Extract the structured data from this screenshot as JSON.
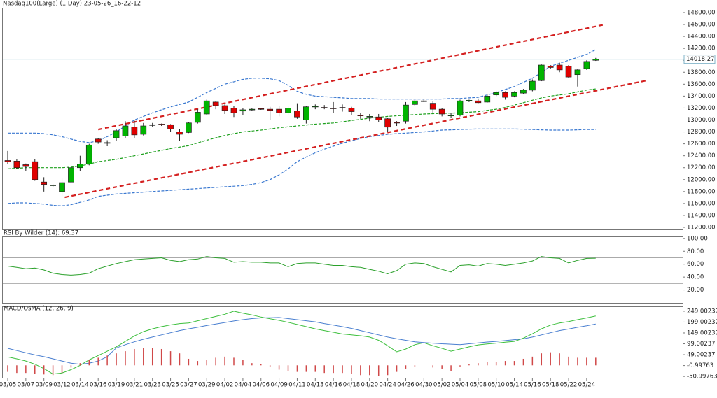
{
  "chart_data": [
    {
      "type": "candlestick",
      "title": "Nasdaq100(Large) (1 Day) 23-05-26_16-22-12",
      "categories": [
        "03/05",
        null,
        "03/07",
        null,
        "03/09",
        null,
        "03/12",
        null,
        "03/14",
        null,
        "03/16",
        null,
        "03/19",
        null,
        "03/21",
        null,
        "03/23",
        null,
        "03/25",
        null,
        "03/27",
        null,
        "03/29",
        null,
        "04/02",
        null,
        "04/04",
        null,
        "04/06",
        null,
        "04/09",
        null,
        "04/11",
        null,
        "04/13",
        null,
        "04/16",
        null,
        "04/18",
        null,
        "04/20",
        null,
        "04/24",
        null,
        "04/26",
        null,
        "04/30",
        null,
        "05/02",
        null,
        "05/04",
        null,
        "05/08",
        null,
        "05/10",
        null,
        "05/14",
        null,
        "05/16",
        null,
        "05/18",
        null,
        "05/22",
        null,
        "05/24",
        null
      ],
      "open": [
        12320,
        12310,
        12250,
        12300,
        11960,
        11900,
        11800,
        11960,
        12200,
        12260,
        12680,
        12620,
        12700,
        12730,
        12880,
        12760,
        12920,
        12930,
        12920,
        12800,
        12790,
        12960,
        13100,
        13300,
        13240,
        13200,
        13150,
        13180,
        13190,
        13180,
        13180,
        13120,
        13150,
        13000,
        13220,
        13210,
        13200,
        13210,
        13200,
        13080,
        13060,
        13050,
        13020,
        12960,
        12980,
        13260,
        13320,
        13280,
        13180,
        13080,
        13080,
        13330,
        13320,
        13300,
        13420,
        13460,
        13400,
        13450,
        13500,
        13660,
        13900,
        13920,
        13900,
        13760,
        13860,
        14000
      ],
      "high": [
        12480,
        12340,
        12270,
        12340,
        12040,
        11920,
        12020,
        12210,
        12400,
        12600,
        12700,
        12660,
        12850,
        12980,
        12990,
        12950,
        12950,
        12940,
        12930,
        12850,
        12960,
        13180,
        13340,
        13320,
        13260,
        13240,
        13200,
        13200,
        13200,
        13220,
        13230,
        13230,
        13280,
        13240,
        13260,
        13250,
        13300,
        13260,
        13220,
        13120,
        13100,
        13100,
        13040,
        12980,
        13300,
        13340,
        13350,
        13320,
        13200,
        13120,
        13340,
        13340,
        13360,
        13430,
        13480,
        13480,
        13480,
        13520,
        13680,
        13930,
        13920,
        13960,
        13920,
        13860,
        14000,
        14040
      ],
      "low": [
        12260,
        12180,
        12150,
        11980,
        11800,
        11880,
        11720,
        11940,
        12150,
        12240,
        12600,
        12560,
        12650,
        12700,
        12700,
        12740,
        12880,
        12900,
        12800,
        12650,
        12780,
        12940,
        13080,
        13180,
        13100,
        13050,
        13080,
        13150,
        13170,
        13000,
        13060,
        13080,
        13020,
        12940,
        13180,
        13180,
        13120,
        13140,
        13080,
        13020,
        12980,
        12960,
        12800,
        12900,
        12940,
        13230,
        13300,
        13120,
        13060,
        13040,
        13060,
        13300,
        13280,
        13290,
        13400,
        13340,
        13380,
        13440,
        13480,
        13650,
        13850,
        13800,
        13700,
        13560,
        13840,
        13990
      ],
      "close": [
        12300,
        12200,
        12220,
        12000,
        11920,
        11910,
        11950,
        12200,
        12260,
        12580,
        12630,
        12620,
        12820,
        12900,
        12750,
        12900,
        12920,
        12920,
        12850,
        12760,
        12950,
        13130,
        13320,
        13240,
        13160,
        13120,
        13170,
        13180,
        13180,
        13160,
        13120,
        13200,
        13050,
        13220,
        13230,
        13200,
        13190,
        13200,
        13140,
        13070,
        13060,
        13000,
        12880,
        12950,
        13250,
        13320,
        13320,
        13180,
        13100,
        13080,
        13320,
        13330,
        13290,
        13400,
        13460,
        13380,
        13460,
        13500,
        13650,
        13920,
        13880,
        13840,
        13720,
        13840,
        13980,
        14018.27
      ],
      "up_color": "#00b400",
      "down_color": "#e00000",
      "series": [
        {
          "color": "#3a78d0",
          "values": [
            12780,
            12780,
            12780,
            12780,
            12770,
            12750,
            12720,
            12680,
            12640,
            12620,
            12650,
            12720,
            12800,
            12900,
            13000,
            13060,
            13120,
            13170,
            13220,
            13260,
            13300,
            13380,
            13460,
            13530,
            13600,
            13640,
            13680,
            13700,
            13700,
            13690,
            13660,
            13580,
            13480,
            13430,
            13400,
            13390,
            13380,
            13370,
            13360,
            13360,
            13360,
            13350,
            13350,
            13350,
            13350,
            13350,
            13350,
            13350,
            13350,
            13360,
            13360,
            13370,
            13380,
            13420,
            13460,
            13510,
            13560,
            13630,
            13700,
            13800,
            13900,
            13950,
            14000,
            14050,
            14100,
            14180
          ]
        },
        {
          "color": "#1ea01e",
          "values": [
            12180,
            12190,
            12200,
            12200,
            12200,
            12200,
            12200,
            12210,
            12230,
            12260,
            12300,
            12320,
            12340,
            12370,
            12400,
            12430,
            12460,
            12490,
            12520,
            12545,
            12570,
            12615,
            12660,
            12700,
            12740,
            12770,
            12800,
            12815,
            12830,
            12850,
            12870,
            12885,
            12900,
            12915,
            12930,
            12940,
            12950,
            12970,
            12990,
            13010,
            13030,
            13045,
            13060,
            13070,
            13080,
            13090,
            13100,
            13105,
            13110,
            13115,
            13120,
            13130,
            13140,
            13160,
            13180,
            13210,
            13250,
            13290,
            13330,
            13370,
            13400,
            13420,
            13440,
            13470,
            13500,
            13520
          ]
        },
        {
          "color": "#3a78d0",
          "values": [
            11600,
            11610,
            11610,
            11600,
            11590,
            11570,
            11560,
            11580,
            11620,
            11660,
            11720,
            11740,
            11760,
            11770,
            11780,
            11790,
            11800,
            11810,
            11820,
            11830,
            11840,
            11850,
            11860,
            11870,
            11880,
            11890,
            11900,
            11920,
            11950,
            12000,
            12080,
            12180,
            12300,
            12380,
            12450,
            12510,
            12560,
            12610,
            12650,
            12690,
            12720,
            12740,
            12760,
            12770,
            12780,
            12790,
            12800,
            12815,
            12830,
            12835,
            12840,
            12845,
            12850,
            12850,
            12850,
            12850,
            12850,
            12845,
            12840,
            12835,
            12830,
            12830,
            12830,
            12835,
            12840,
            12840
          ]
        }
      ],
      "trendlines": [
        {
          "color": "#d42020",
          "x": [
            10,
            66
          ],
          "y": [
            12840,
            14600
          ]
        },
        {
          "color": "#d42020",
          "x": [
            6.3,
            70.7
          ],
          "y": [
            11704,
            13663
          ]
        }
      ],
      "last_price": {
        "value": 14018.27,
        "label": "14018.27"
      },
      "ylim": [
        11165,
        14870
      ],
      "yticks": [
        {
          "value": 14800,
          "label": "14800.00"
        },
        {
          "value": 14600,
          "label": "14600.00"
        },
        {
          "value": 14400,
          "label": "14400.00"
        },
        {
          "value": 14200,
          "label": "14200.00"
        },
        {
          "value": 14000,
          "label": "14000.00"
        },
        {
          "value": 13800,
          "label": "13800.00"
        },
        {
          "value": 13600,
          "label": "13600.00"
        },
        {
          "value": 13400,
          "label": "13400.00"
        },
        {
          "value": 13200,
          "label": "13200.00"
        },
        {
          "value": 13000,
          "label": "13000.00"
        },
        {
          "value": 12800,
          "label": "12800.00"
        },
        {
          "value": 12600,
          "label": "12600.00"
        },
        {
          "value": 12400,
          "label": "12400.00"
        },
        {
          "value": 12200,
          "label": "12200.00"
        },
        {
          "value": 12000,
          "label": "12000.00"
        },
        {
          "value": 11800,
          "label": "11800.00"
        },
        {
          "value": 11600,
          "label": "11600.00"
        },
        {
          "value": 11400,
          "label": "11400.00"
        },
        {
          "value": 11200,
          "label": "11200.00"
        }
      ]
    },
    {
      "type": "line",
      "title": "RSI By Wilder (14): 69.37",
      "color": "#2aa02a",
      "values": [
        57,
        55,
        53,
        54,
        51,
        46,
        44,
        43,
        44,
        46,
        53,
        57,
        61,
        64,
        67,
        68,
        69,
        70,
        66,
        64,
        67,
        68,
        72,
        70,
        69,
        63,
        64,
        63,
        63,
        62,
        62,
        56,
        61,
        62,
        62,
        60,
        58,
        58,
        56,
        55,
        52,
        49,
        45,
        50,
        60,
        62,
        61,
        56,
        52,
        48,
        58,
        59,
        57,
        61,
        60,
        58,
        60,
        62,
        65,
        72,
        70,
        69,
        62,
        66,
        69,
        69.37
      ],
      "levels": [
        70,
        30
      ],
      "ylim": [
        0,
        102
      ],
      "yticks": [
        {
          "value": 100,
          "label": "100.00"
        },
        {
          "value": 80,
          "label": "80.00"
        },
        {
          "value": 60,
          "label": "60.00"
        },
        {
          "value": 40,
          "label": "40.00"
        },
        {
          "value": 20,
          "label": "20.00"
        }
      ]
    },
    {
      "type": "line",
      "title": "MACD/OsMA (12, 26, 9)",
      "series": [
        {
          "color": "#3cbf3c",
          "values": [
            39,
            30,
            20,
            5,
            -15,
            -40,
            -35,
            -20,
            0,
            25,
            45,
            65,
            85,
            110,
            135,
            155,
            168,
            178,
            186,
            192,
            195,
            205,
            215,
            225,
            235,
            249,
            240,
            232,
            222,
            214,
            207,
            198,
            188,
            178,
            168,
            160,
            152,
            144,
            140,
            136,
            130,
            115,
            90,
            62,
            75,
            95,
            104,
            90,
            78,
            65,
            75,
            85,
            94,
            98,
            102,
            106,
            110,
            125,
            145,
            168,
            185,
            195,
            201,
            210,
            218,
            227
          ]
        },
        {
          "color": "#4a7fd0",
          "values": [
            78,
            68,
            58,
            48,
            40,
            30,
            20,
            10,
            5,
            10,
            20,
            40,
            80,
            95,
            108,
            120,
            130,
            140,
            150,
            160,
            168,
            175,
            183,
            190,
            197,
            204,
            210,
            215,
            218,
            219,
            220,
            215,
            210,
            205,
            200,
            192,
            185,
            178,
            170,
            160,
            150,
            140,
            130,
            122,
            115,
            108,
            105,
            102,
            99,
            97,
            95,
            99,
            103,
            107,
            110,
            114,
            118,
            122,
            130,
            140,
            150,
            160,
            167,
            175,
            182,
            190
          ]
        },
        {
          "type": "bar",
          "color": "#d04848",
          "values": [
            -30,
            -35,
            -35,
            -40,
            -42,
            -45,
            -35,
            -10,
            10,
            25,
            35,
            45,
            55,
            65,
            75,
            80,
            80,
            75,
            65,
            55,
            30,
            20,
            25,
            35,
            40,
            35,
            25,
            10,
            5,
            -5,
            -20,
            -25,
            -30,
            -30,
            -30,
            -35,
            -35,
            -35,
            -40,
            -45,
            -45,
            -50,
            -45,
            -30,
            -15,
            -5,
            0,
            -10,
            -15,
            -25,
            -5,
            5,
            10,
            15,
            15,
            20,
            20,
            30,
            40,
            55,
            60,
            55,
            40,
            35,
            35,
            35
          ]
        }
      ],
      "ylim": [
        -57,
        268
      ],
      "yticks": [
        249.00237,
        199.00237,
        149.00237,
        99.00237,
        49.00237,
        -0.99763,
        -50.99763
      ]
    }
  ]
}
